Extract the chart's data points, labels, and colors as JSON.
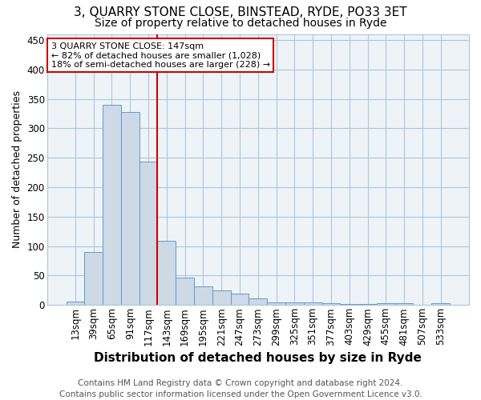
{
  "title1": "3, QUARRY STONE CLOSE, BINSTEAD, RYDE, PO33 3ET",
  "title2": "Size of property relative to detached houses in Ryde",
  "xlabel": "Distribution of detached houses by size in Ryde",
  "ylabel": "Number of detached properties",
  "footer1": "Contains HM Land Registry data © Crown copyright and database right 2024.",
  "footer2": "Contains public sector information licensed under the Open Government Licence v3.0.",
  "bar_labels": [
    "13sqm",
    "39sqm",
    "65sqm",
    "91sqm",
    "117sqm",
    "143sqm",
    "169sqm",
    "195sqm",
    "221sqm",
    "247sqm",
    "273sqm",
    "299sqm",
    "325sqm",
    "351sqm",
    "377sqm",
    "403sqm",
    "429sqm",
    "455sqm",
    "481sqm",
    "507sqm",
    "533sqm"
  ],
  "bar_values": [
    6,
    90,
    340,
    328,
    243,
    109,
    47,
    32,
    25,
    20,
    11,
    5,
    5,
    5,
    3,
    2,
    2,
    3,
    3,
    0,
    3
  ],
  "bar_color": "#cdd9e5",
  "bar_edge_color": "#5b9bd5",
  "vline_color": "#cc0000",
  "vline_index": 5,
  "annotation_text": "3 QUARRY STONE CLOSE: 147sqm\n← 82% of detached houses are smaller (1,028)\n18% of semi-detached houses are larger (228) →",
  "annotation_box_color": "#cc0000",
  "ylim": [
    0,
    460
  ],
  "yticks": [
    0,
    50,
    100,
    150,
    200,
    250,
    300,
    350,
    400,
    450
  ],
  "background_color": "#ffffff",
  "plot_bg_color": "#eef3f8",
  "grid_color": "#aec6d8",
  "title1_fontsize": 11,
  "title2_fontsize": 10,
  "xlabel_fontsize": 11,
  "ylabel_fontsize": 9,
  "tick_fontsize": 8.5,
  "annotation_fontsize": 8,
  "footer_fontsize": 7.5
}
